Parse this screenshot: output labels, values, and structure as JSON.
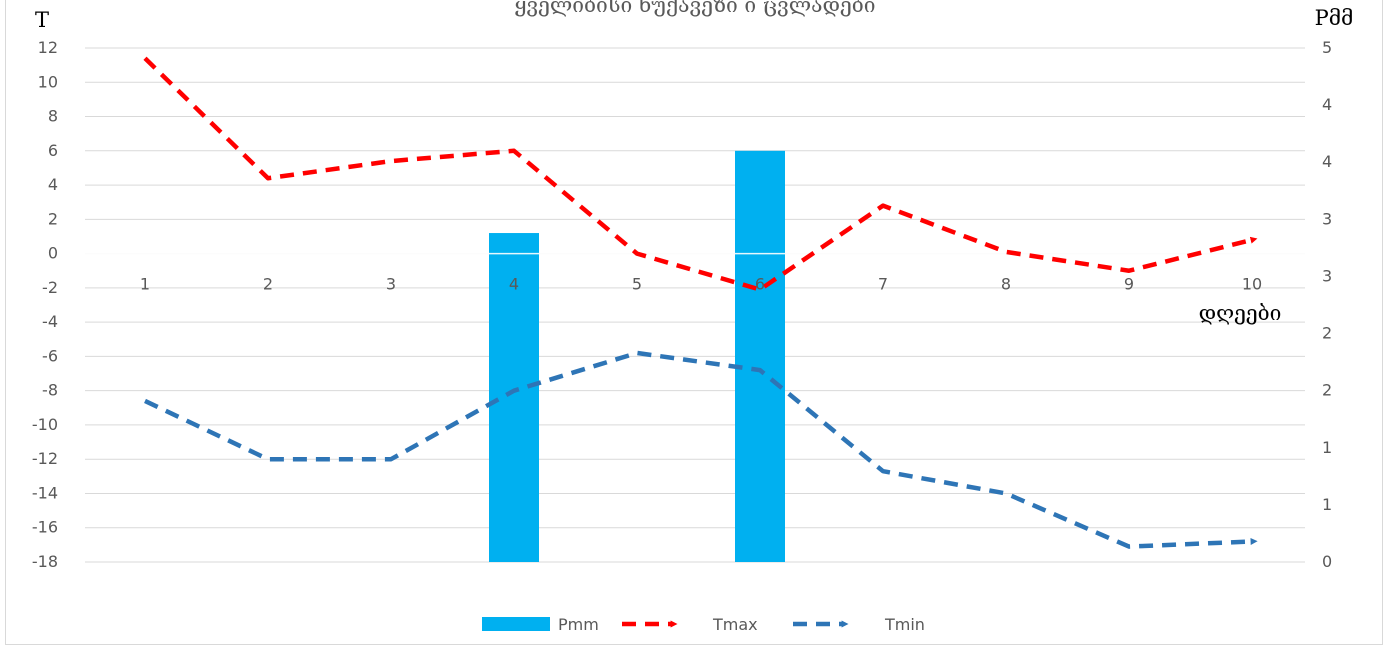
{
  "chart_data": {
    "type": "bar",
    "title": "ყველიბისი ნუქავეზი ი ცვლადები",
    "xlabel": "დღეები",
    "ylabel_left": "T",
    "ylabel_right": "Pმმ",
    "categories": [
      "1",
      "2",
      "3",
      "4",
      "5",
      "6",
      "7",
      "8",
      "9",
      "10"
    ],
    "ylim_left": [
      -18,
      12
    ],
    "yticks_left": [
      "12",
      "10",
      "8",
      "6",
      "4",
      "2",
      "0",
      "-2",
      "-4",
      "-6",
      "-8",
      "-10",
      "-12",
      "-14",
      "-16",
      "-18"
    ],
    "ylim_right": [
      0,
      5
    ],
    "yticks_right": [
      "5",
      "4",
      "4",
      "3",
      "3",
      "2",
      "2",
      "1",
      "1",
      "0"
    ],
    "grid": true,
    "legend_position": "bottom",
    "series": [
      {
        "name": "Pmm",
        "type": "bar",
        "axis": "right",
        "color": "#00b0f0",
        "values": [
          null,
          null,
          null,
          3.2,
          null,
          4.0,
          null,
          null,
          null,
          null
        ]
      },
      {
        "name": "Tmax",
        "type": "line",
        "axis": "left",
        "style": "dashed",
        "color": "#ff0000",
        "values": [
          11.4,
          4.4,
          5.4,
          6.0,
          0.0,
          -2.1,
          2.8,
          0.1,
          -1.0,
          0.8
        ]
      },
      {
        "name": "Tmin",
        "type": "line",
        "axis": "left",
        "style": "dashed",
        "color": "#2e75b6",
        "values": [
          -8.6,
          -12.0,
          -12.0,
          -8.0,
          -5.8,
          -6.8,
          -12.7,
          -14.0,
          -17.1,
          -16.8
        ]
      }
    ]
  }
}
